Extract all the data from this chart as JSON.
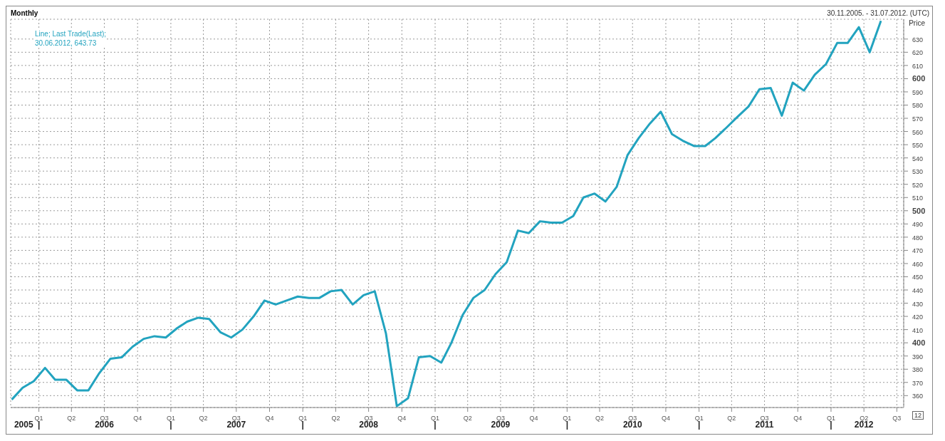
{
  "chart_data": {
    "type": "line",
    "title": "Monthly",
    "subtitle": "30.11.2005. - 31.07.2012. (UTC)",
    "ylabel": "Price",
    "x": [
      "2005-11",
      "2005-12",
      "2006-01",
      "2006-02",
      "2006-03",
      "2006-04",
      "2006-05",
      "2006-06",
      "2006-07",
      "2006-08",
      "2006-09",
      "2006-10",
      "2006-11",
      "2006-12",
      "2007-01",
      "2007-02",
      "2007-03",
      "2007-04",
      "2007-05",
      "2007-06",
      "2007-07",
      "2007-08",
      "2007-09",
      "2007-10",
      "2007-11",
      "2007-12",
      "2008-01",
      "2008-02",
      "2008-03",
      "2008-04",
      "2008-05",
      "2008-06",
      "2008-07",
      "2008-08",
      "2008-09",
      "2008-10",
      "2008-11",
      "2008-12",
      "2009-01",
      "2009-02",
      "2009-03",
      "2009-04",
      "2009-05",
      "2009-06",
      "2009-07",
      "2009-08",
      "2009-09",
      "2009-10",
      "2009-11",
      "2009-12",
      "2010-01",
      "2010-02",
      "2010-03",
      "2010-04",
      "2010-05",
      "2010-06",
      "2010-07",
      "2010-08",
      "2010-09",
      "2010-10",
      "2010-11",
      "2010-12",
      "2011-01",
      "2011-02",
      "2011-03",
      "2011-04",
      "2011-05",
      "2011-06",
      "2011-07",
      "2011-08",
      "2011-09",
      "2011-10",
      "2011-11",
      "2011-12",
      "2012-01",
      "2012-02",
      "2012-03",
      "2012-04",
      "2012-05",
      "2012-06"
    ],
    "series": [
      {
        "name": "Line; Last Trade(Last);",
        "color": "#22a3bf",
        "values": [
          357,
          366,
          371,
          381,
          372,
          372,
          364,
          364,
          377,
          388,
          389,
          397,
          403,
          405,
          404,
          411,
          416,
          419,
          418,
          408,
          404,
          410,
          420,
          432,
          429,
          432,
          435,
          434,
          434,
          439,
          440,
          429,
          436,
          439,
          407,
          352,
          358,
          389,
          390,
          385,
          400,
          421,
          434,
          440,
          452,
          461,
          485,
          483,
          492,
          491,
          491,
          496,
          510,
          513,
          507,
          518,
          542,
          555,
          566,
          575,
          558,
          553,
          549,
          549,
          555,
          563,
          571,
          579,
          592,
          593,
          572,
          597,
          591,
          603,
          611,
          627,
          627,
          639,
          620,
          643.73
        ]
      }
    ],
    "xlim": [
      "2005-10-29",
      "2012-08-03"
    ],
    "xticks": [
      {
        "value": "2006-01-15",
        "label": "Q1"
      },
      {
        "value": "2006-04-15",
        "label": "Q2"
      },
      {
        "value": "2006-07-15",
        "label": "Q3"
      },
      {
        "value": "2006-10-15",
        "label": "Q4"
      },
      {
        "value": "2007-01-15",
        "label": "Q1"
      },
      {
        "value": "2007-04-15",
        "label": "Q2"
      },
      {
        "value": "2007-07-15",
        "label": "Q3"
      },
      {
        "value": "2007-10-15",
        "label": "Q4"
      },
      {
        "value": "2008-01-15",
        "label": "Q1"
      },
      {
        "value": "2008-04-15",
        "label": "Q2"
      },
      {
        "value": "2008-07-15",
        "label": "Q3"
      },
      {
        "value": "2008-10-15",
        "label": "Q4"
      },
      {
        "value": "2009-01-15",
        "label": "Q1"
      },
      {
        "value": "2009-04-15",
        "label": "Q2"
      },
      {
        "value": "2009-07-15",
        "label": "Q3"
      },
      {
        "value": "2009-10-15",
        "label": "Q4"
      },
      {
        "value": "2010-01-15",
        "label": "Q1"
      },
      {
        "value": "2010-04-15",
        "label": "Q2"
      },
      {
        "value": "2010-07-15",
        "label": "Q3"
      },
      {
        "value": "2010-10-15",
        "label": "Q4"
      },
      {
        "value": "2011-01-15",
        "label": "Q1"
      },
      {
        "value": "2011-04-15",
        "label": "Q2"
      },
      {
        "value": "2011-07-15",
        "label": "Q3"
      },
      {
        "value": "2011-10-15",
        "label": "Q4"
      },
      {
        "value": "2012-01-15",
        "label": "Q1"
      },
      {
        "value": "2012-04-15",
        "label": "Q2"
      },
      {
        "value": "2012-07-15",
        "label": "Q3"
      }
    ],
    "x2lim": [
      "2005-10-29",
      "2012-08-03"
    ],
    "x2ticks": [
      {
        "value": "2005-12-04",
        "label": "2005"
      },
      {
        "value": "2006-01-15",
        "label": "|"
      },
      {
        "value": "2006-07-15",
        "label": "2006"
      },
      {
        "value": "2007-01-15",
        "label": "|"
      },
      {
        "value": "2007-07-15",
        "label": "2007"
      },
      {
        "value": "2008-01-15",
        "label": "|"
      },
      {
        "value": "2008-07-15",
        "label": "2008"
      },
      {
        "value": "2009-01-15",
        "label": "|"
      },
      {
        "value": "2009-07-15",
        "label": "2009"
      },
      {
        "value": "2010-01-15",
        "label": "|"
      },
      {
        "value": "2010-07-15",
        "label": "2010"
      },
      {
        "value": "2011-01-15",
        "label": "|"
      },
      {
        "value": "2011-07-15",
        "label": "2011"
      },
      {
        "value": "2012-01-15",
        "label": "|"
      },
      {
        "value": "2012-04-15",
        "label": "2012"
      }
    ],
    "ylim": [
      351,
      645
    ],
    "yticks": [
      360,
      370,
      380,
      390,
      400,
      410,
      420,
      430,
      440,
      450,
      460,
      470,
      480,
      490,
      500,
      510,
      520,
      530,
      540,
      550,
      560,
      570,
      580,
      590,
      600,
      610,
      620,
      630
    ],
    "grid": true,
    "legend": "top left",
    "marker": "none",
    "line_style": "solid",
    "annotations": [
      "30.06.2012, 643.73",
      "12"
    ]
  }
}
